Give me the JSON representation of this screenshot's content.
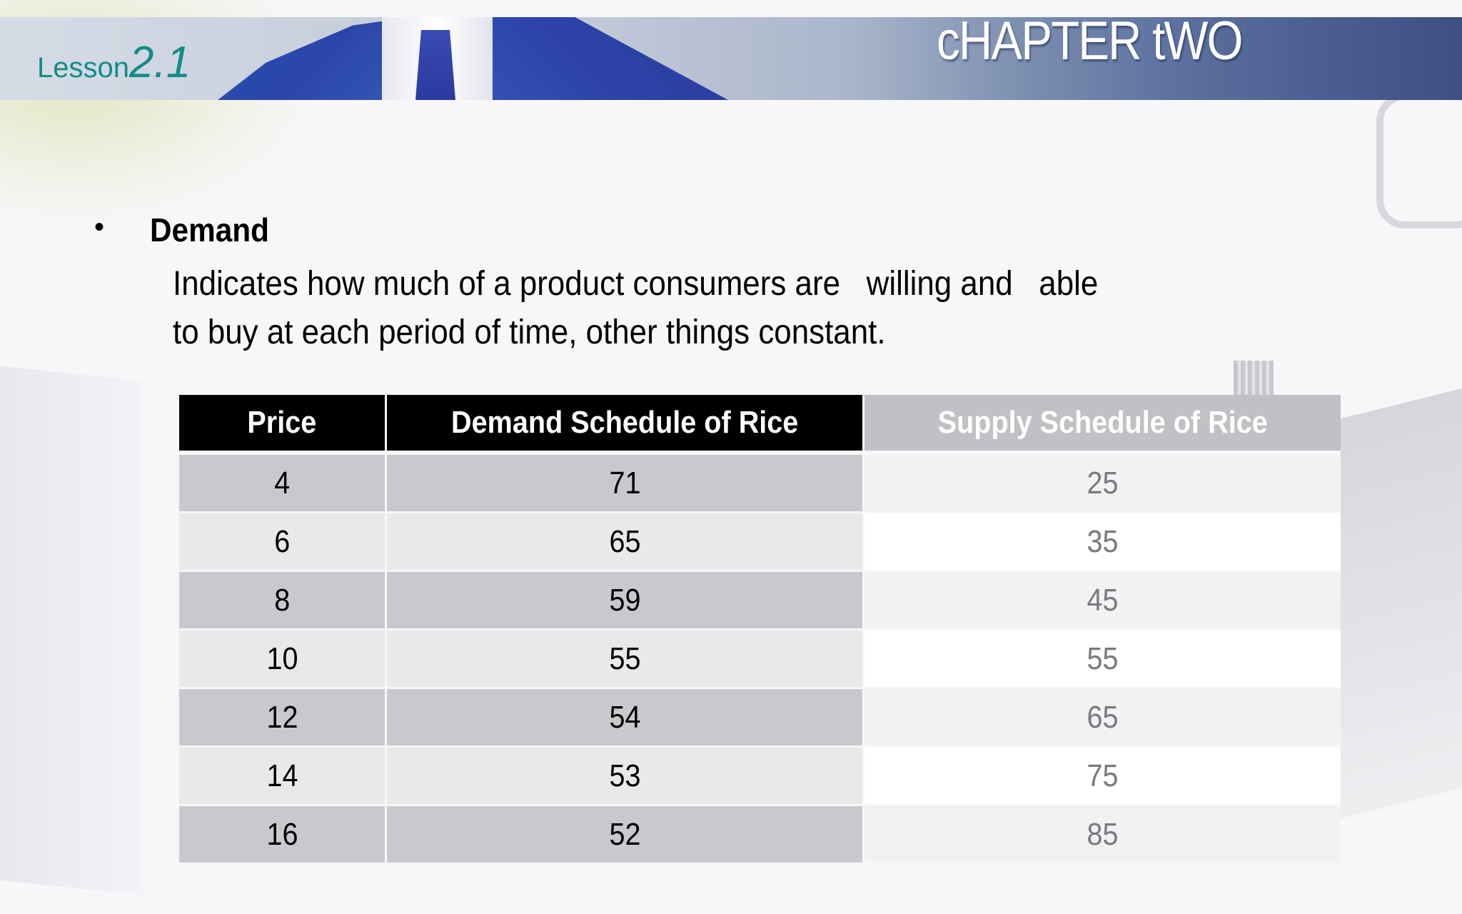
{
  "header": {
    "lesson_word": "Lesson",
    "lesson_number": "2.1",
    "chapter_title": "cHAPTER tWO"
  },
  "content": {
    "bullet_symbol": "•",
    "heading": "Demand",
    "paragraph_line1": "Indicates how much of a product consumers are   willing and   able",
    "paragraph_line2": "to buy at each period of time, other things constant."
  },
  "table": {
    "headers": [
      "Price",
      "Demand Schedule of Rice",
      "Supply Schedule of Rice"
    ],
    "rows": [
      {
        "price": "4",
        "demand": "71",
        "supply": "25"
      },
      {
        "price": "6",
        "demand": "65",
        "supply": "35"
      },
      {
        "price": "8",
        "demand": "59",
        "supply": "45"
      },
      {
        "price": "10",
        "demand": "55",
        "supply": "55"
      },
      {
        "price": "12",
        "demand": "54",
        "supply": "65"
      },
      {
        "price": "14",
        "demand": "53",
        "supply": "75"
      },
      {
        "price": "16",
        "demand": "52",
        "supply": "85"
      }
    ]
  },
  "colors": {
    "lesson_teal": "#148c86",
    "header_dark": "#000000",
    "header_gray": "#c1c0c4",
    "row_dark": "#cac8cc",
    "row_light": "#e9e8eb",
    "supply_text": "#7a7a7e"
  }
}
